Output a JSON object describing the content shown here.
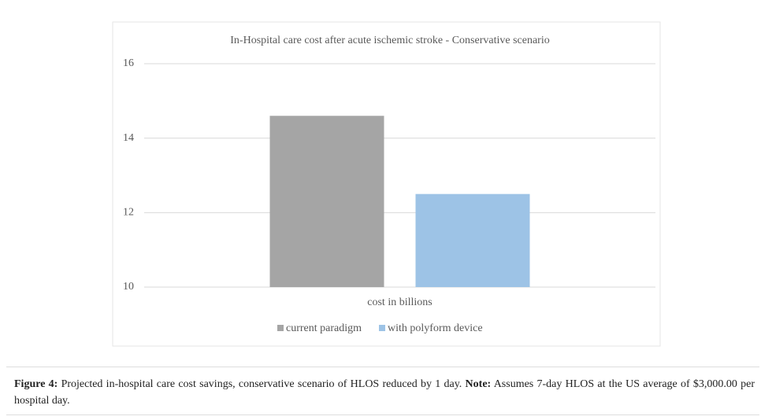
{
  "chart_data": {
    "type": "bar",
    "title": "In-Hospital care cost after acute ischemic stroke - Conservative scenario",
    "categories": [
      "cost in billions"
    ],
    "series": [
      {
        "name": "current paradigm",
        "color": "#a5a5a5",
        "values": [
          14.6
        ]
      },
      {
        "name": "with polyform device",
        "color": "#9dc3e6",
        "values": [
          12.5
        ]
      }
    ],
    "ylim": [
      10,
      16
    ],
    "yticks": [
      10,
      12,
      14,
      16
    ],
    "grid": true,
    "legend": "bottom"
  },
  "caption": {
    "label": "Figure 4:",
    "text": "Projected in-hospital care cost savings, conservative scenario of HLOS reduced by 1 day.",
    "note_label": "Note:",
    "note_text": "Assumes 7-day HLOS at the US average of $3,000.00 per hospital day."
  }
}
